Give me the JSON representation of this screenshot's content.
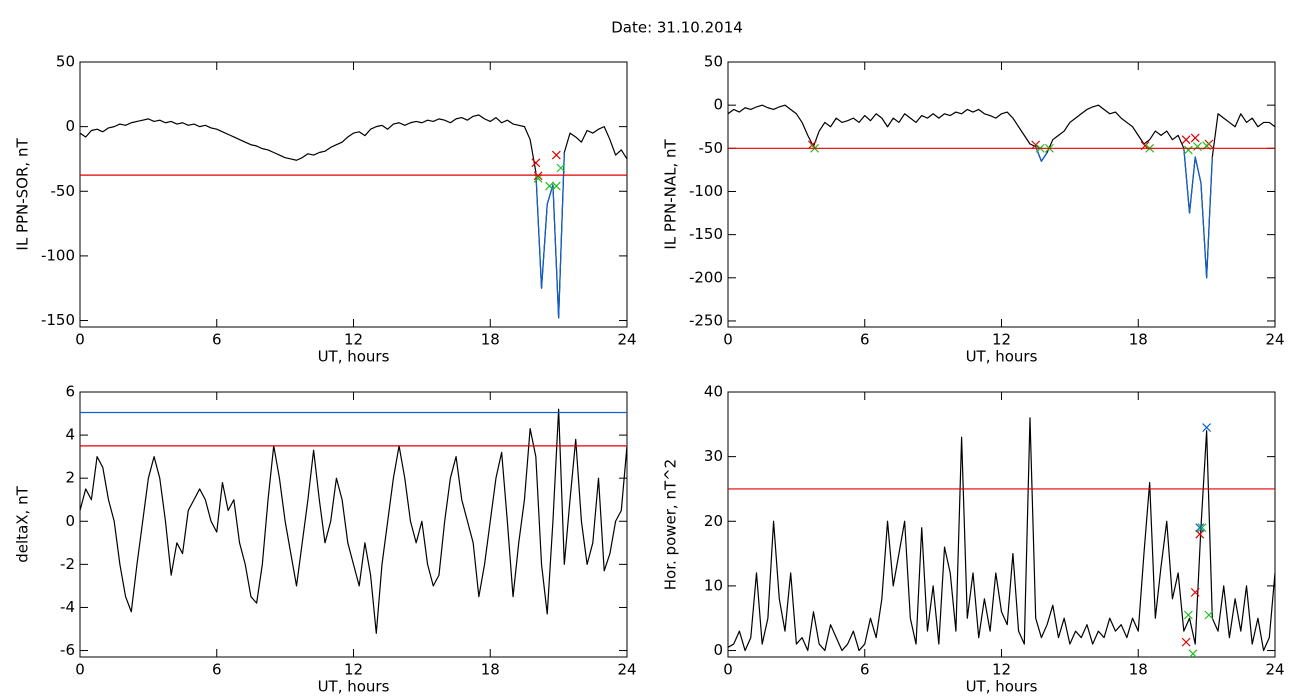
{
  "title": "Date:  31.10.2014",
  "chart_data": [
    {
      "type": "line",
      "xlabel": "UT, hours",
      "ylabel": "IL PPN-SOR, nT",
      "xlim": [
        0,
        24
      ],
      "xticks": [
        0,
        6,
        12,
        18,
        24
      ],
      "ylim": [
        -155,
        50
      ],
      "yticks": [
        50,
        0,
        -50,
        -100,
        -150
      ],
      "thresholds": [
        {
          "value": -37.5,
          "color": "#e00000"
        }
      ],
      "x": [
        0,
        0.25,
        0.5,
        0.75,
        1,
        1.25,
        1.5,
        1.75,
        2,
        2.25,
        2.5,
        2.75,
        3,
        3.25,
        3.5,
        3.75,
        4,
        4.25,
        4.5,
        4.75,
        5,
        5.25,
        5.5,
        5.75,
        6,
        6.25,
        6.5,
        6.75,
        7,
        7.25,
        7.5,
        7.75,
        8,
        8.25,
        8.5,
        8.75,
        9,
        9.25,
        9.5,
        9.75,
        10,
        10.25,
        10.5,
        10.75,
        11,
        11.25,
        11.5,
        11.75,
        12,
        12.25,
        12.5,
        12.75,
        13,
        13.25,
        13.5,
        13.75,
        14,
        14.25,
        14.5,
        14.75,
        15,
        15.25,
        15.5,
        15.75,
        16,
        16.25,
        16.5,
        16.75,
        17,
        17.25,
        17.5,
        17.75,
        18,
        18.25,
        18.5,
        18.75,
        19,
        19.25,
        19.5,
        19.75,
        20,
        20.25,
        20.5,
        20.75,
        21,
        21.25,
        21.5,
        21.75,
        22,
        22.25,
        22.5,
        22.75,
        23,
        23.25,
        23.5,
        23.75,
        24
      ],
      "series": [
        {
          "color": "#000000",
          "values": [
            -5,
            -8,
            -3,
            -2,
            -4,
            -1,
            0,
            2,
            1,
            3,
            4,
            5,
            6,
            4,
            5,
            3,
            4,
            2,
            3,
            1,
            2,
            0,
            1,
            -1,
            -2,
            -4,
            -6,
            -8,
            -10,
            -12,
            -14,
            -15,
            -17,
            -18,
            -20,
            -22,
            -24,
            -25,
            -26,
            -24,
            -21,
            -22,
            -20,
            -19,
            -16,
            -14,
            -12,
            -8,
            -5,
            -4,
            -7,
            -2,
            0,
            1,
            -2,
            2,
            3,
            1,
            3,
            4,
            3,
            5,
            4,
            6,
            5,
            3,
            6,
            7,
            5,
            8,
            9,
            6,
            4,
            7,
            3,
            5,
            2,
            1,
            0,
            -10,
            -35,
            -125,
            -60,
            -45,
            -148,
            -20,
            -5,
            -8,
            -12,
            -3,
            -5,
            -2,
            0,
            -10,
            -22,
            -18,
            -25
          ]
        },
        {
          "color": "#1060d0",
          "values": [
            null,
            null,
            null,
            null,
            null,
            null,
            null,
            null,
            null,
            null,
            null,
            null,
            null,
            null,
            null,
            null,
            null,
            null,
            null,
            null,
            null,
            null,
            null,
            null,
            null,
            null,
            null,
            null,
            null,
            null,
            null,
            null,
            null,
            null,
            null,
            null,
            null,
            null,
            null,
            null,
            null,
            null,
            null,
            null,
            null,
            null,
            null,
            null,
            null,
            null,
            null,
            null,
            null,
            null,
            null,
            null,
            null,
            null,
            null,
            null,
            null,
            null,
            null,
            null,
            null,
            null,
            null,
            null,
            null,
            null,
            null,
            null,
            null,
            null,
            null,
            null,
            null,
            null,
            null,
            null,
            -35,
            -125,
            -60,
            -45,
            -148,
            -20,
            null,
            null,
            null,
            null,
            null,
            null,
            null,
            null,
            null,
            null,
            null
          ]
        },
        {
          "type": "scatter",
          "color": "#e00000",
          "x": [
            20.0,
            20.1,
            20.9
          ],
          "values": [
            -28,
            -38,
            -22
          ]
        },
        {
          "type": "scatter",
          "color": "#20c020",
          "x": [
            20.1,
            20.6,
            20.9,
            21.1
          ],
          "values": [
            -40,
            -46,
            -46,
            -32
          ]
        }
      ]
    },
    {
      "type": "line",
      "xlabel": "UT, hours",
      "ylabel": "IL PPN-NAL, nT",
      "xlim": [
        0,
        24
      ],
      "xticks": [
        0,
        6,
        12,
        18,
        24
      ],
      "ylim": [
        -257,
        50
      ],
      "yticks": [
        50,
        0,
        -50,
        -100,
        -150,
        -200,
        -250
      ],
      "thresholds": [
        {
          "value": -50,
          "color": "#e00000"
        }
      ],
      "x": [
        0,
        0.25,
        0.5,
        0.75,
        1,
        1.25,
        1.5,
        1.75,
        2,
        2.25,
        2.5,
        2.75,
        3,
        3.25,
        3.5,
        3.75,
        4,
        4.25,
        4.5,
        4.75,
        5,
        5.25,
        5.5,
        5.75,
        6,
        6.25,
        6.5,
        6.75,
        7,
        7.25,
        7.5,
        7.75,
        8,
        8.25,
        8.5,
        8.75,
        9,
        9.25,
        9.5,
        9.75,
        10,
        10.25,
        10.5,
        10.75,
        11,
        11.25,
        11.5,
        11.75,
        12,
        12.25,
        12.5,
        12.75,
        13,
        13.25,
        13.5,
        13.75,
        14,
        14.25,
        14.5,
        14.75,
        15,
        15.25,
        15.5,
        15.75,
        16,
        16.25,
        16.5,
        16.75,
        17,
        17.25,
        17.5,
        17.75,
        18,
        18.25,
        18.5,
        18.75,
        19,
        19.25,
        19.5,
        19.75,
        20,
        20.25,
        20.5,
        20.75,
        21,
        21.25,
        21.5,
        21.75,
        22,
        22.25,
        22.5,
        22.75,
        23,
        23.25,
        23.5,
        23.75,
        24
      ],
      "series": [
        {
          "color": "#000000",
          "values": [
            -10,
            -5,
            -8,
            -3,
            -5,
            -2,
            0,
            -3,
            -5,
            -2,
            0,
            -5,
            -10,
            -20,
            -35,
            -48,
            -30,
            -20,
            -25,
            -15,
            -20,
            -18,
            -15,
            -20,
            -12,
            -18,
            -10,
            -15,
            -25,
            -15,
            -20,
            -10,
            -15,
            -20,
            -12,
            -15,
            -10,
            -15,
            -10,
            -12,
            -8,
            -10,
            -5,
            -8,
            -5,
            -10,
            -12,
            -15,
            -10,
            -8,
            -15,
            -25,
            -35,
            -45,
            -48,
            -65,
            -55,
            -40,
            -35,
            -30,
            -20,
            -15,
            -10,
            -5,
            -2,
            0,
            -5,
            -10,
            -8,
            -15,
            -20,
            -25,
            -35,
            -45,
            -40,
            -30,
            -35,
            -30,
            -40,
            -35,
            -50,
            -125,
            -60,
            -90,
            -200,
            -60,
            -10,
            -15,
            -20,
            -25,
            -10,
            -20,
            -15,
            -25,
            -20,
            -20,
            -25
          ]
        },
        {
          "color": "#1060d0",
          "values": [
            null,
            null,
            null,
            null,
            null,
            null,
            null,
            null,
            null,
            null,
            null,
            null,
            null,
            null,
            null,
            null,
            null,
            null,
            null,
            null,
            null,
            null,
            null,
            null,
            null,
            null,
            null,
            null,
            null,
            null,
            null,
            null,
            null,
            null,
            null,
            null,
            null,
            null,
            null,
            null,
            null,
            null,
            null,
            null,
            null,
            null,
            null,
            null,
            null,
            null,
            null,
            null,
            null,
            null,
            -48,
            -65,
            -55,
            null,
            null,
            null,
            null,
            null,
            null,
            null,
            null,
            null,
            null,
            null,
            null,
            null,
            null,
            null,
            null,
            null,
            null,
            null,
            null,
            null,
            null,
            null,
            -50,
            -125,
            -60,
            -90,
            -200,
            -60,
            null,
            null,
            null,
            null,
            null,
            null,
            null,
            null,
            null,
            null,
            null
          ]
        },
        {
          "type": "scatter",
          "color": "#e00000",
          "x": [
            3.7,
            13.5,
            18.3,
            20.1,
            20.5,
            21.1
          ],
          "values": [
            -46,
            -46,
            -47,
            -40,
            -38,
            -45
          ]
        },
        {
          "type": "scatter",
          "color": "#20c020",
          "x": [
            3.8,
            13.7,
            14.1,
            18.5,
            20.2,
            20.6,
            21.0
          ],
          "values": [
            -50,
            -50,
            -50,
            -50,
            -52,
            -48,
            -47
          ]
        }
      ]
    },
    {
      "type": "line",
      "xlabel": "UT, hours",
      "ylabel": "deltaX, nT",
      "xlim": [
        0,
        24
      ],
      "xticks": [
        0,
        6,
        12,
        18,
        24
      ],
      "ylim": [
        -6.3,
        6
      ],
      "yticks": [
        6,
        4,
        2,
        0,
        -2,
        -4,
        -6
      ],
      "thresholds": [
        {
          "value": 5.05,
          "color": "#1060d0"
        },
        {
          "value": 3.5,
          "color": "#e00000"
        }
      ],
      "x": [
        0,
        0.25,
        0.5,
        0.75,
        1,
        1.25,
        1.5,
        1.75,
        2,
        2.25,
        2.5,
        2.75,
        3,
        3.25,
        3.5,
        3.75,
        4,
        4.25,
        4.5,
        4.75,
        5,
        5.25,
        5.5,
        5.75,
        6,
        6.25,
        6.5,
        6.75,
        7,
        7.25,
        7.5,
        7.75,
        8,
        8.25,
        8.5,
        8.75,
        9,
        9.25,
        9.5,
        9.75,
        10,
        10.25,
        10.5,
        10.75,
        11,
        11.25,
        11.5,
        11.75,
        12,
        12.25,
        12.5,
        12.75,
        13,
        13.25,
        13.5,
        13.75,
        14,
        14.25,
        14.5,
        14.75,
        15,
        15.25,
        15.5,
        15.75,
        16,
        16.25,
        16.5,
        16.75,
        17,
        17.25,
        17.5,
        17.75,
        18,
        18.25,
        18.5,
        18.75,
        19,
        19.25,
        19.5,
        19.75,
        20,
        20.25,
        20.5,
        20.75,
        21,
        21.25,
        21.5,
        21.75,
        22,
        22.25,
        22.5,
        22.75,
        23,
        23.25,
        23.5,
        23.75,
        24
      ],
      "series": [
        {
          "color": "#000000",
          "values": [
            0.5,
            1.5,
            1,
            3,
            2.5,
            1,
            0,
            -2,
            -3.5,
            -4.2,
            -2,
            0,
            2,
            3,
            2,
            0,
            -2.5,
            -1,
            -1.5,
            0.5,
            1,
            1.5,
            1,
            0,
            -0.5,
            1.8,
            0.5,
            1,
            -1,
            -2,
            -3.5,
            -3.8,
            -2,
            1,
            3.5,
            2,
            0,
            -1.5,
            -3,
            -1,
            1,
            3.3,
            1,
            -1,
            0,
            2,
            1,
            -1,
            -2,
            -3,
            -1,
            -2.5,
            -5.2,
            -2,
            0,
            2,
            3.5,
            2,
            0,
            -1,
            0,
            -2,
            -3,
            -2.5,
            0,
            2,
            3,
            1,
            0,
            -1,
            -3.5,
            -2,
            0,
            2,
            3.2,
            0,
            -3.5,
            -1,
            1,
            4.3,
            3,
            -2,
            -4.3,
            0,
            5.2,
            -2,
            1,
            3.8,
            0,
            -2,
            -1,
            2,
            -2.3,
            -1.5,
            0,
            0.5,
            3.5
          ]
        }
      ]
    },
    {
      "type": "line",
      "xlabel": "UT, hours",
      "ylabel": "Hor. power, nT^2",
      "xlim": [
        0,
        24
      ],
      "xticks": [
        0,
        6,
        12,
        18,
        24
      ],
      "ylim": [
        -1,
        40
      ],
      "yticks": [
        40,
        30,
        20,
        10,
        0
      ],
      "thresholds": [
        {
          "value": 25,
          "color": "#e00000"
        }
      ],
      "x": [
        0,
        0.25,
        0.5,
        0.75,
        1,
        1.25,
        1.5,
        1.75,
        2,
        2.25,
        2.5,
        2.75,
        3,
        3.25,
        3.5,
        3.75,
        4,
        4.25,
        4.5,
        4.75,
        5,
        5.25,
        5.5,
        5.75,
        6,
        6.25,
        6.5,
        6.75,
        7,
        7.25,
        7.5,
        7.75,
        8,
        8.25,
        8.5,
        8.75,
        9,
        9.25,
        9.5,
        9.75,
        10,
        10.25,
        10.5,
        10.75,
        11,
        11.25,
        11.5,
        11.75,
        12,
        12.25,
        12.5,
        12.75,
        13,
        13.25,
        13.5,
        13.75,
        14,
        14.25,
        14.5,
        14.75,
        15,
        15.25,
        15.5,
        15.75,
        16,
        16.25,
        16.5,
        16.75,
        17,
        17.25,
        17.5,
        17.75,
        18,
        18.25,
        18.5,
        18.75,
        19,
        19.25,
        19.5,
        19.75,
        20,
        20.25,
        20.5,
        20.75,
        21,
        21.25,
        21.5,
        21.75,
        22,
        22.25,
        22.5,
        22.75,
        23,
        23.25,
        23.5,
        23.75,
        24
      ],
      "series": [
        {
          "color": "#000000",
          "values": [
            0.5,
            1,
            3,
            0,
            2,
            12,
            1,
            5,
            20,
            8,
            3,
            12,
            1,
            2,
            0,
            6,
            1,
            0,
            4,
            2,
            0,
            1,
            3,
            0,
            1,
            5,
            2,
            8,
            20,
            10,
            15,
            20,
            5,
            1,
            19,
            3,
            10,
            1,
            16,
            12,
            3,
            33,
            5,
            12,
            2,
            8,
            3,
            12,
            6,
            4,
            15,
            3,
            1,
            36,
            5,
            2,
            4,
            7,
            2,
            5,
            1,
            3,
            2,
            4,
            1,
            3,
            2,
            5,
            3,
            4,
            2,
            5,
            3,
            15,
            26,
            5,
            13,
            20,
            8,
            12,
            3,
            5,
            1,
            19,
            34,
            5,
            3,
            10,
            2,
            8,
            3,
            10,
            1,
            5,
            0,
            2,
            12
          ]
        },
        {
          "type": "scatter",
          "color": "#e00000",
          "x": [
            20.1,
            20.5,
            20.7
          ],
          "values": [
            1.3,
            9,
            18
          ]
        },
        {
          "type": "scatter",
          "color": "#20c020",
          "x": [
            20.2,
            20.4,
            20.8,
            21.1
          ],
          "values": [
            5.5,
            -0.5,
            19,
            5.5
          ]
        },
        {
          "type": "scatter",
          "color": "#1060d0",
          "x": [
            20.7,
            21.0
          ],
          "values": [
            19,
            34.5
          ]
        }
      ]
    }
  ]
}
